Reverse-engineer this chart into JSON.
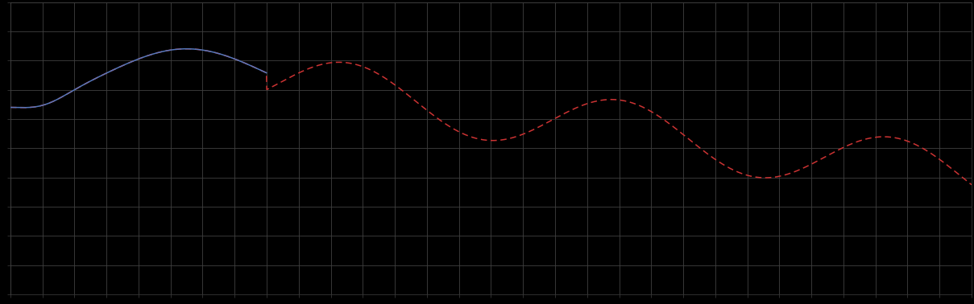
{
  "background_color": "#000000",
  "plot_bg_color": "#000000",
  "grid_color": "#404040",
  "line1_color": "#5577bb",
  "line2_color": "#cc3333",
  "figsize": [
    12.09,
    3.78
  ],
  "dpi": 100,
  "xlim": [
    0,
    30
  ],
  "ylim": [
    0,
    10
  ],
  "grid_linewidth": 0.6,
  "line_linewidth": 1.1,
  "n_gridlines_x": 30,
  "n_gridlines_y": 10
}
